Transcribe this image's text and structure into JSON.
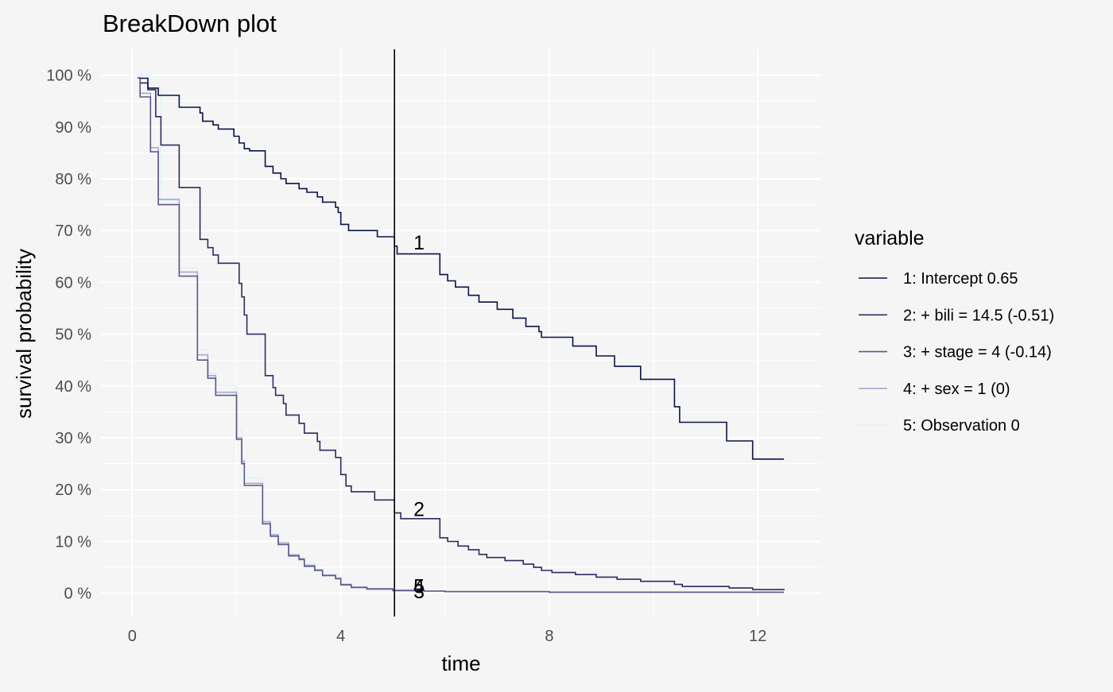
{
  "chart_data": {
    "type": "line",
    "title": "BreakDown plot",
    "xlabel": "time",
    "ylabel": "survival probability",
    "xlim": [
      -0.6,
      13.2
    ],
    "ylim": [
      -0.045,
      1.05
    ],
    "x_ticks": [
      0,
      4,
      8,
      12
    ],
    "x_tick_labels": [
      "0",
      "4",
      "8",
      "12"
    ],
    "y_ticks": [
      0,
      0.1,
      0.2,
      0.3,
      0.4,
      0.5,
      0.6,
      0.7,
      0.8,
      0.9,
      1.0
    ],
    "y_tick_labels": [
      "0 %",
      "10 %",
      "20 %",
      "30 %",
      "40 %",
      "50 %",
      "60 %",
      "70 %",
      "80 %",
      "90 %",
      "100 %"
    ],
    "grid": true,
    "legend_title": "variable",
    "legend_position": "right",
    "vline_x": 5.03,
    "series": [
      {
        "name": "1: Intercept 0.65",
        "color": "#0b1445",
        "points": [
          [
            0.15,
            0.994
          ],
          [
            0.3,
            0.975
          ],
          [
            0.5,
            0.961
          ],
          [
            0.9,
            0.938
          ],
          [
            1.3,
            0.927
          ],
          [
            1.35,
            0.911
          ],
          [
            1.55,
            0.904
          ],
          [
            1.65,
            0.896
          ],
          [
            1.95,
            0.882
          ],
          [
            2.05,
            0.869
          ],
          [
            2.15,
            0.858
          ],
          [
            2.25,
            0.854
          ],
          [
            2.55,
            0.824
          ],
          [
            2.7,
            0.811
          ],
          [
            2.85,
            0.8
          ],
          [
            2.95,
            0.791
          ],
          [
            3.2,
            0.781
          ],
          [
            3.35,
            0.774
          ],
          [
            3.55,
            0.765
          ],
          [
            3.65,
            0.755
          ],
          [
            3.9,
            0.745
          ],
          [
            3.95,
            0.735
          ],
          [
            4.0,
            0.712
          ],
          [
            4.15,
            0.7
          ],
          [
            4.7,
            0.688
          ],
          [
            5.03,
            0.67
          ],
          [
            5.08,
            0.655
          ],
          [
            5.9,
            0.615
          ],
          [
            6.05,
            0.603
          ],
          [
            6.2,
            0.591
          ],
          [
            6.45,
            0.575
          ],
          [
            6.65,
            0.562
          ],
          [
            7.0,
            0.548
          ],
          [
            7.3,
            0.531
          ],
          [
            7.55,
            0.515
          ],
          [
            7.8,
            0.505
          ],
          [
            7.85,
            0.494
          ],
          [
            8.45,
            0.477
          ],
          [
            8.9,
            0.458
          ],
          [
            9.25,
            0.438
          ],
          [
            9.75,
            0.413
          ],
          [
            10.4,
            0.36
          ],
          [
            10.5,
            0.33
          ],
          [
            11.4,
            0.294
          ],
          [
            11.9,
            0.259
          ],
          [
            12.5,
            0.259
          ]
        ]
      },
      {
        "name": "2: + bili = 14.5 (-0.51)",
        "color": "#2e2b61",
        "points": [
          [
            0.15,
            0.985
          ],
          [
            0.3,
            0.972
          ],
          [
            0.45,
            0.92
          ],
          [
            0.55,
            0.865
          ],
          [
            0.9,
            0.783
          ],
          [
            1.3,
            0.683
          ],
          [
            1.45,
            0.667
          ],
          [
            1.55,
            0.653
          ],
          [
            1.65,
            0.637
          ],
          [
            2.05,
            0.598
          ],
          [
            2.1,
            0.572
          ],
          [
            2.15,
            0.537
          ],
          [
            2.2,
            0.5
          ],
          [
            2.55,
            0.42
          ],
          [
            2.7,
            0.397
          ],
          [
            2.75,
            0.382
          ],
          [
            2.9,
            0.366
          ],
          [
            2.95,
            0.344
          ],
          [
            3.2,
            0.328
          ],
          [
            3.3,
            0.309
          ],
          [
            3.55,
            0.293
          ],
          [
            3.6,
            0.276
          ],
          [
            3.9,
            0.262
          ],
          [
            4.0,
            0.229
          ],
          [
            4.1,
            0.207
          ],
          [
            4.2,
            0.196
          ],
          [
            4.65,
            0.18
          ],
          [
            5.03,
            0.155
          ],
          [
            5.15,
            0.144
          ],
          [
            5.9,
            0.107
          ],
          [
            6.05,
            0.1
          ],
          [
            6.25,
            0.091
          ],
          [
            6.45,
            0.084
          ],
          [
            6.65,
            0.075
          ],
          [
            6.8,
            0.069
          ],
          [
            7.15,
            0.063
          ],
          [
            7.5,
            0.056
          ],
          [
            7.7,
            0.05
          ],
          [
            7.85,
            0.044
          ],
          [
            8.05,
            0.04
          ],
          [
            8.5,
            0.036
          ],
          [
            8.9,
            0.031
          ],
          [
            9.3,
            0.027
          ],
          [
            9.75,
            0.023
          ],
          [
            10.4,
            0.017
          ],
          [
            10.55,
            0.013
          ],
          [
            11.45,
            0.01
          ],
          [
            11.9,
            0.007
          ],
          [
            12.5,
            0.006
          ]
        ]
      },
      {
        "name": "3: + stage = 4 (-0.14)",
        "color": "#5c588a",
        "points": [
          [
            0.1,
            0.995
          ],
          [
            0.15,
            0.958
          ],
          [
            0.35,
            0.852
          ],
          [
            0.5,
            0.75
          ],
          [
            0.9,
            0.612
          ],
          [
            1.25,
            0.45
          ],
          [
            1.45,
            0.415
          ],
          [
            1.6,
            0.382
          ],
          [
            2.0,
            0.297
          ],
          [
            2.1,
            0.25
          ],
          [
            2.15,
            0.208
          ],
          [
            2.5,
            0.134
          ],
          [
            2.65,
            0.11
          ],
          [
            2.8,
            0.094
          ],
          [
            3.0,
            0.072
          ],
          [
            3.2,
            0.065
          ],
          [
            3.3,
            0.052
          ],
          [
            3.5,
            0.044
          ],
          [
            3.65,
            0.034
          ],
          [
            3.9,
            0.028
          ],
          [
            4.0,
            0.016
          ],
          [
            4.2,
            0.011
          ],
          [
            4.5,
            0.008
          ],
          [
            5.0,
            0.005
          ],
          [
            5.6,
            0.004
          ],
          [
            6.0,
            0.003
          ],
          [
            8.0,
            0.002
          ],
          [
            12.5,
            0.002
          ]
        ]
      },
      {
        "name": "4: + sex = 1 (0)",
        "color": "#a5a8d0",
        "points": [
          [
            0.1,
            0.995
          ],
          [
            0.15,
            0.965
          ],
          [
            0.35,
            0.86
          ],
          [
            0.5,
            0.76
          ],
          [
            0.9,
            0.62
          ],
          [
            1.25,
            0.46
          ],
          [
            1.45,
            0.42
          ],
          [
            1.6,
            0.388
          ],
          [
            2.0,
            0.3
          ],
          [
            2.1,
            0.255
          ],
          [
            2.15,
            0.212
          ],
          [
            2.5,
            0.138
          ],
          [
            2.65,
            0.113
          ],
          [
            2.8,
            0.097
          ],
          [
            3.0,
            0.074
          ],
          [
            3.2,
            0.067
          ],
          [
            3.3,
            0.054
          ],
          [
            3.5,
            0.045
          ],
          [
            3.65,
            0.035
          ],
          [
            3.9,
            0.029
          ],
          [
            4.0,
            0.017
          ],
          [
            4.2,
            0.012
          ],
          [
            4.5,
            0.009
          ],
          [
            5.0,
            0.006
          ],
          [
            5.6,
            0.004
          ],
          [
            6.0,
            0.003
          ],
          [
            8.0,
            0.002
          ],
          [
            12.5,
            0.002
          ]
        ]
      },
      {
        "name": "5: Observation 0",
        "color": "#dff3fb",
        "points": [
          [
            0.05,
            1.0
          ],
          [
            0.35,
            0.976
          ],
          [
            0.55,
            0.762
          ],
          [
            0.9,
            0.628
          ],
          [
            1.25,
            0.47
          ],
          [
            1.45,
            0.425
          ],
          [
            1.6,
            0.401
          ],
          [
            2.0,
            0.316
          ],
          [
            2.1,
            0.26
          ],
          [
            2.15,
            0.222
          ],
          [
            2.5,
            0.14
          ],
          [
            2.65,
            0.116
          ],
          [
            2.8,
            0.1
          ],
          [
            3.0,
            0.076
          ],
          [
            3.2,
            0.069
          ],
          [
            3.3,
            0.055
          ],
          [
            3.5,
            0.046
          ],
          [
            3.65,
            0.036
          ],
          [
            3.9,
            0.03
          ],
          [
            4.0,
            0.018
          ],
          [
            4.2,
            0.012
          ],
          [
            4.5,
            0.009
          ],
          [
            5.0,
            0.006
          ],
          [
            5.6,
            0.004
          ],
          [
            6.0,
            0.003
          ],
          [
            8.0,
            0.002
          ],
          [
            12.5,
            0.002
          ]
        ]
      }
    ],
    "annotations": [
      {
        "text": "1",
        "x": 5.5,
        "y": 0.677
      },
      {
        "text": "2",
        "x": 5.5,
        "y": 0.163
      },
      {
        "text": "4",
        "x": 5.5,
        "y": 0.014
      },
      {
        "text": "5",
        "x": 5.5,
        "y": 0.014
      },
      {
        "text": "3",
        "x": 5.5,
        "y": 0.004
      }
    ]
  }
}
